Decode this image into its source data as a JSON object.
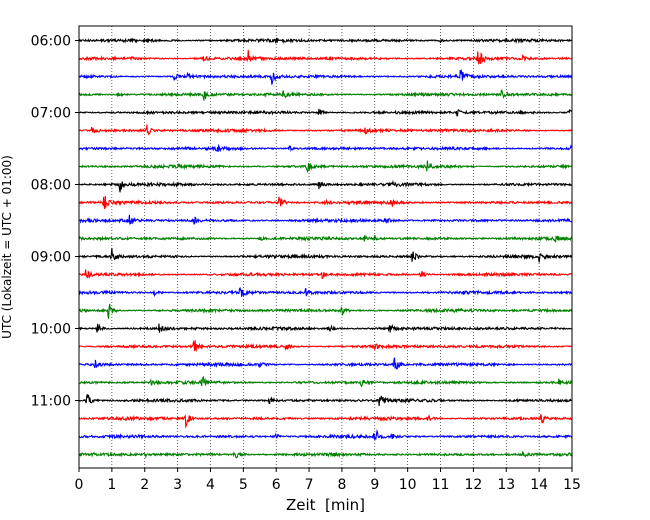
{
  "chart_data": {
    "type": "line",
    "title": "",
    "xlabel": "Zeit  [min]",
    "ylabel": "UTC (Lokalzeit = UTC + 01:00)",
    "xlim": [
      0,
      15
    ],
    "x_ticks": [
      "0",
      "1",
      "2",
      "3",
      "4",
      "5",
      "6",
      "7",
      "8",
      "9",
      "10",
      "11",
      "12",
      "13",
      "14",
      "15"
    ],
    "y_tick_labels": [
      "06:00",
      "07:00",
      "08:00",
      "09:00",
      "10:00",
      "11:00"
    ],
    "grid": "vertical dotted",
    "legend": "none",
    "trace_colors": [
      "#000000",
      "#ff0000",
      "#0000ff",
      "#008000"
    ],
    "traces": [
      {
        "start": "06:00",
        "events": [
          [
            6.0,
            0.2
          ],
          [
            11.0,
            0.15
          ]
        ]
      },
      {
        "start": "06:15",
        "events": [
          [
            1.6,
            0.2
          ],
          [
            3.8,
            0.4
          ],
          [
            5.15,
            1.0
          ],
          [
            12.15,
            1.0
          ],
          [
            13.5,
            0.25
          ]
        ]
      },
      {
        "start": "06:30",
        "events": [
          [
            2.9,
            0.35
          ],
          [
            5.85,
            1.0
          ],
          [
            11.6,
            0.8
          ],
          [
            3.3,
            0.3
          ]
        ]
      },
      {
        "start": "06:45",
        "events": [
          [
            3.8,
            0.9
          ],
          [
            6.2,
            0.4
          ],
          [
            12.85,
            0.7
          ],
          [
            1.2,
            0.25
          ]
        ]
      },
      {
        "start": "07:00",
        "events": [
          [
            7.3,
            0.45
          ],
          [
            11.5,
            0.35
          ],
          [
            14.9,
            0.35
          ]
        ]
      },
      {
        "start": "07:15",
        "events": [
          [
            0.4,
            0.45
          ],
          [
            2.05,
            0.7
          ],
          [
            8.7,
            0.3
          ],
          [
            11.0,
            0.3
          ]
        ]
      },
      {
        "start": "07:30",
        "events": [
          [
            4.2,
            0.35
          ],
          [
            6.4,
            0.25
          ],
          [
            15.0,
            0.7
          ]
        ]
      },
      {
        "start": "07:45",
        "events": [
          [
            6.95,
            0.7
          ],
          [
            10.6,
            0.6
          ],
          [
            3.0,
            0.25
          ]
        ]
      },
      {
        "start": "08:00",
        "events": [
          [
            1.25,
            0.75
          ],
          [
            7.3,
            0.45
          ],
          [
            9.5,
            0.45
          ]
        ]
      },
      {
        "start": "08:15",
        "events": [
          [
            0.75,
            1.0
          ],
          [
            6.1,
            0.8
          ],
          [
            9.5,
            0.5
          ],
          [
            7.5,
            0.4
          ]
        ]
      },
      {
        "start": "08:30",
        "events": [
          [
            1.5,
            0.8
          ],
          [
            9.3,
            0.5
          ],
          [
            3.5,
            0.35
          ]
        ]
      },
      {
        "start": "08:45",
        "events": [
          [
            8.7,
            0.4
          ],
          [
            9.0,
            0.35
          ],
          [
            14.5,
            0.25
          ],
          [
            5.5,
            0.25
          ]
        ]
      },
      {
        "start": "09:00",
        "events": [
          [
            1.0,
            0.85
          ],
          [
            10.15,
            0.85
          ],
          [
            14.0,
            0.55
          ]
        ]
      },
      {
        "start": "09:15",
        "events": [
          [
            0.2,
            0.75
          ],
          [
            7.4,
            0.45
          ],
          [
            10.4,
            0.55
          ],
          [
            15.0,
            0.45
          ]
        ]
      },
      {
        "start": "09:30",
        "events": [
          [
            2.3,
            0.4
          ],
          [
            4.9,
            0.8
          ],
          [
            6.9,
            0.4
          ]
        ]
      },
      {
        "start": "09:45",
        "events": [
          [
            0.9,
            1.0
          ],
          [
            8.0,
            0.6
          ],
          [
            11.4,
            0.4
          ]
        ]
      },
      {
        "start": "10:00",
        "events": [
          [
            0.55,
            0.7
          ],
          [
            2.45,
            0.6
          ],
          [
            7.6,
            0.45
          ],
          [
            9.45,
            0.7
          ]
        ]
      },
      {
        "start": "10:15",
        "events": [
          [
            3.5,
            0.9
          ],
          [
            6.3,
            0.45
          ],
          [
            9.0,
            0.3
          ]
        ]
      },
      {
        "start": "10:30",
        "events": [
          [
            0.5,
            0.45
          ],
          [
            9.6,
            1.0
          ],
          [
            5.5,
            0.3
          ]
        ]
      },
      {
        "start": "10:45",
        "events": [
          [
            3.75,
            0.7
          ],
          [
            8.6,
            0.35
          ],
          [
            14.6,
            0.3
          ],
          [
            2.2,
            0.3
          ]
        ]
      },
      {
        "start": "11:00",
        "events": [
          [
            0.25,
            1.0
          ],
          [
            9.15,
            0.85
          ],
          [
            5.8,
            0.35
          ]
        ]
      },
      {
        "start": "11:15",
        "events": [
          [
            3.25,
            0.85
          ],
          [
            10.6,
            0.45
          ],
          [
            14.05,
            0.75
          ]
        ]
      },
      {
        "start": "11:30",
        "events": [
          [
            6.0,
            0.4
          ],
          [
            9.0,
            1.0
          ],
          [
            9.5,
            0.4
          ]
        ]
      },
      {
        "start": "11:45",
        "events": [
          [
            4.75,
            0.85
          ],
          [
            2.0,
            0.25
          ],
          [
            13.5,
            0.3
          ]
        ]
      }
    ]
  }
}
